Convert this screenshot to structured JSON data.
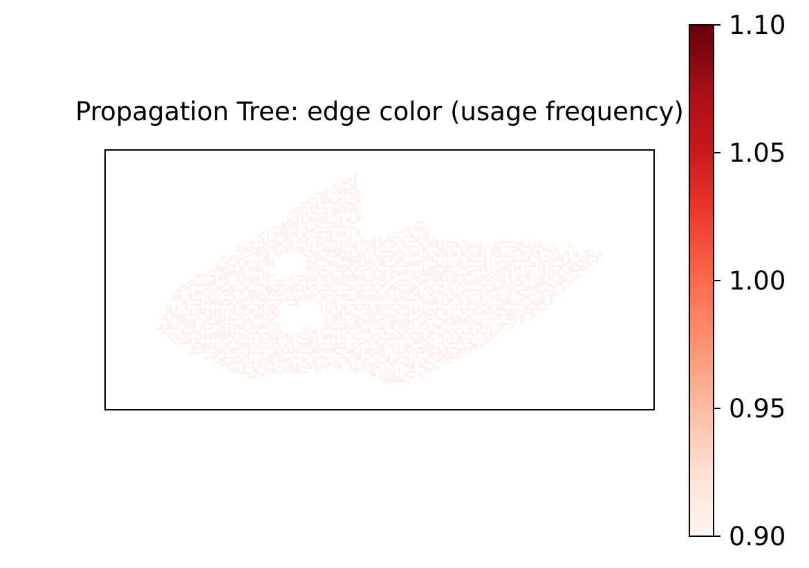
{
  "chart_data": {
    "type": "heatmap",
    "title": "Propagation Tree: edge color (usage frequency)",
    "xlabel": "",
    "ylabel": "",
    "axis_ticks_visible": false,
    "grid": false,
    "series": [
      {
        "kind": "network-edges",
        "value": 1.0,
        "edge_color": "#fff1ea"
      }
    ],
    "colorbar": {
      "colormap": "Reds",
      "vmin": 0.9,
      "vmax": 1.1,
      "ticks": [
        0.9,
        0.95,
        1.0,
        1.05,
        1.1
      ],
      "tick_labels": [
        "0.90",
        "0.95",
        "1.00",
        "1.05",
        "1.10"
      ],
      "colors": [
        "#fff5f0",
        "#fee0d2",
        "#fcbba1",
        "#fc9272",
        "#fb6a4a",
        "#ef3b2c",
        "#cb181d",
        "#a50f15",
        "#67000d"
      ],
      "placement": "right"
    }
  }
}
